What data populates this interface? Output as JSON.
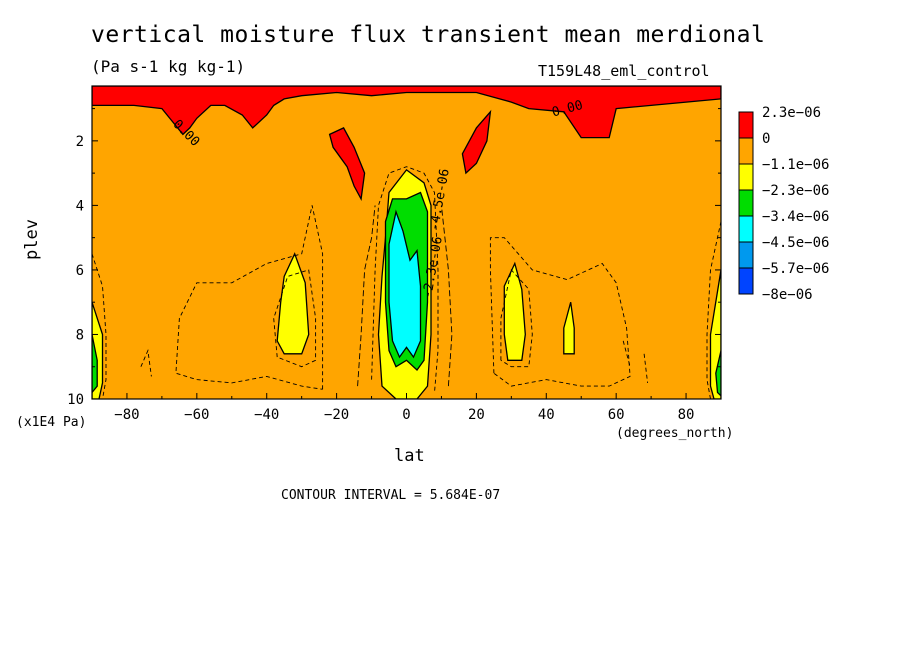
{
  "chart_data": {
    "type": "heatmap",
    "title": "vertical moisture flux transient mean merdional",
    "subtitle": "(Pa s-1 kg kg-1)",
    "run_label": "T159L48_eml_control",
    "xlabel": "lat",
    "ylabel": "plev",
    "x_unit": "(degrees_north)",
    "y_unit": "(x1E4 Pa)",
    "xlim": [
      -90,
      90
    ],
    "ylim": [
      10,
      0.3
    ],
    "x_ticks": [
      -80,
      -60,
      -40,
      -20,
      0,
      20,
      40,
      60,
      80
    ],
    "y_ticks": [
      2,
      4,
      6,
      8,
      10
    ],
    "contour_interval_text": "CONTOUR INTERVAL = 5.684E-07",
    "contour_labels": [
      "0.00",
      "-0.00",
      "-2.3e-06",
      "-4.5e-06"
    ],
    "colorbar": {
      "levels": [
        "2.3e-06",
        "0",
        "-1.1e-06",
        "-2.3e-06",
        "-3.4e-06",
        "-4.5e-06",
        "-5.7e-06",
        "-8e-06"
      ],
      "colors": [
        "#ff0000",
        "#ffa500",
        "#ffff00",
        "#00dd00",
        "#00ffff",
        "#0099ee",
        "#0044ff"
      ]
    },
    "background_color": "#ffa500",
    "regions": [
      {
        "level": "positive",
        "color": "#ff0000",
        "points": [
          [
            -90,
            0.3
          ],
          [
            90,
            0.3
          ],
          [
            90,
            0.7
          ],
          [
            80,
            0.8
          ],
          [
            70,
            0.9
          ],
          [
            60,
            1.0
          ],
          [
            58,
            1.9
          ],
          [
            50,
            1.9
          ],
          [
            45,
            1.1
          ],
          [
            35,
            1.0
          ],
          [
            30,
            0.8
          ],
          [
            20,
            0.5
          ],
          [
            10,
            0.5
          ],
          [
            0,
            0.5
          ],
          [
            -10,
            0.6
          ],
          [
            -20,
            0.5
          ],
          [
            -30,
            0.6
          ],
          [
            -35,
            0.7
          ],
          [
            -38,
            0.9
          ],
          [
            -40,
            1.2
          ],
          [
            -44,
            1.6
          ],
          [
            -47,
            1.2
          ],
          [
            -52,
            0.9
          ],
          [
            -56,
            0.9
          ],
          [
            -60,
            1.3
          ],
          [
            -62,
            1.6
          ],
          [
            -64,
            1.8
          ],
          [
            -67,
            1.4
          ],
          [
            -70,
            1.0
          ],
          [
            -78,
            0.9
          ],
          [
            -84,
            0.9
          ],
          [
            -90,
            0.9
          ]
        ]
      },
      {
        "level": "positive",
        "color": "#ff0000",
        "points": [
          [
            -22,
            1.8
          ],
          [
            -18,
            1.6
          ],
          [
            -15,
            2.2
          ],
          [
            -12,
            3.0
          ],
          [
            -13,
            3.8
          ],
          [
            -15,
            3.4
          ],
          [
            -17,
            2.8
          ],
          [
            -21,
            2.2
          ]
        ]
      },
      {
        "level": "positive",
        "color": "#ff0000",
        "points": [
          [
            16,
            2.4
          ],
          [
            20,
            1.6
          ],
          [
            24,
            1.1
          ],
          [
            23,
            2.0
          ],
          [
            20,
            2.7
          ],
          [
            17,
            3.0
          ]
        ]
      },
      {
        "level": "-1.1e-06",
        "color": "#ffff00",
        "points": [
          [
            -6,
            5.0
          ],
          [
            -5,
            3.6
          ],
          [
            0,
            2.9
          ],
          [
            5,
            3.3
          ],
          [
            7,
            4.0
          ],
          [
            7,
            6.0
          ],
          [
            7,
            8.0
          ],
          [
            6,
            9.6
          ],
          [
            3,
            10
          ],
          [
            -3,
            10
          ],
          [
            -7,
            9.6
          ],
          [
            -8,
            8.0
          ],
          [
            -7,
            6.2
          ]
        ]
      },
      {
        "level": "-3.4e-06",
        "color": "#00dd00",
        "points": [
          [
            -6,
            4.5
          ],
          [
            -4,
            3.8
          ],
          [
            0,
            3.8
          ],
          [
            4,
            3.6
          ],
          [
            6,
            4.2
          ],
          [
            6,
            7.0
          ],
          [
            5,
            8.8
          ],
          [
            3,
            9.1
          ],
          [
            0,
            8.8
          ],
          [
            -3,
            9.0
          ],
          [
            -5,
            8.5
          ],
          [
            -6,
            7.0
          ]
        ]
      },
      {
        "level": "-4.5e-06",
        "color": "#00ffff",
        "points": [
          [
            -5,
            5.2
          ],
          [
            -3,
            4.2
          ],
          [
            -1,
            4.8
          ],
          [
            1,
            5.7
          ],
          [
            3,
            5.4
          ],
          [
            4,
            6.5
          ],
          [
            4,
            8.2
          ],
          [
            2,
            8.7
          ],
          [
            0,
            8.4
          ],
          [
            -2,
            8.7
          ],
          [
            -4,
            8.2
          ],
          [
            -5,
            7.0
          ]
        ]
      },
      {
        "level": "-1.1e-06",
        "color": "#ffff00",
        "points": [
          [
            -35,
            6.2
          ],
          [
            -32,
            5.5
          ],
          [
            -29,
            6.4
          ],
          [
            -28,
            8.0
          ],
          [
            -30,
            8.6
          ],
          [
            -35,
            8.6
          ],
          [
            -37,
            8.2
          ],
          [
            -36,
            7.0
          ]
        ]
      },
      {
        "level": "-1.1e-06",
        "color": "#ffff00",
        "points": [
          [
            28,
            6.5
          ],
          [
            31,
            5.8
          ],
          [
            33,
            6.6
          ],
          [
            34,
            8.0
          ],
          [
            33,
            8.8
          ],
          [
            29,
            8.8
          ],
          [
            28,
            8.0
          ]
        ]
      },
      {
        "level": "-1.1e-06",
        "color": "#ffff00",
        "points": [
          [
            45,
            7.8
          ],
          [
            47,
            7.0
          ],
          [
            48,
            7.8
          ],
          [
            48,
            8.6
          ],
          [
            45,
            8.6
          ]
        ]
      },
      {
        "level": "-1.1e-06",
        "color": "#ffff00",
        "points": [
          [
            -90,
            7.0
          ],
          [
            -87,
            8.0
          ],
          [
            -87,
            9.5
          ],
          [
            -88,
            10
          ],
          [
            -90,
            10
          ]
        ]
      },
      {
        "level": "-1.1e-06",
        "color": "#ffff00",
        "points": [
          [
            90,
            6.0
          ],
          [
            87,
            8.0
          ],
          [
            87,
            9.6
          ],
          [
            88,
            10
          ],
          [
            90,
            10
          ]
        ]
      },
      {
        "level": "-2.3e-06",
        "color": "#00dd00",
        "points": [
          [
            -90,
            8.0
          ],
          [
            -88.5,
            8.8
          ],
          [
            -88.5,
            9.6
          ],
          [
            -90,
            9.8
          ]
        ]
      },
      {
        "level": "-2.3e-06",
        "color": "#00dd00",
        "points": [
          [
            90,
            8.5
          ],
          [
            88.5,
            9.2
          ],
          [
            89,
            9.8
          ],
          [
            90,
            9.9
          ]
        ]
      }
    ],
    "dashed_contours": [
      [
        [
          -24,
          9.7
        ],
        [
          -24,
          5.5
        ],
        [
          -27,
          4.0
        ],
        [
          -30,
          5.5
        ],
        [
          -40,
          5.8
        ],
        [
          -50,
          6.4
        ],
        [
          -60,
          6.4
        ],
        [
          -65,
          7.5
        ],
        [
          -66,
          9.2
        ],
        [
          -60,
          9.4
        ],
        [
          -50,
          9.5
        ],
        [
          -40,
          9.3
        ],
        [
          -30,
          9.6
        ],
        [
          -24,
          9.7
        ]
      ],
      [
        [
          -37,
          8.7
        ],
        [
          -38,
          7.5
        ],
        [
          -34,
          6.2
        ],
        [
          -28,
          6.0
        ],
        [
          -26,
          7.5
        ],
        [
          -26,
          8.8
        ],
        [
          -30,
          9.0
        ],
        [
          -37,
          8.7
        ]
      ],
      [
        [
          -10,
          9.4
        ],
        [
          -9,
          6.0
        ],
        [
          -8,
          4.0
        ],
        [
          -5,
          3.0
        ],
        [
          0,
          2.8
        ],
        [
          5,
          3.0
        ],
        [
          8,
          3.6
        ],
        [
          9,
          6.0
        ],
        [
          9,
          8.5
        ],
        [
          8,
          9.8
        ]
      ],
      [
        [
          25,
          9.2
        ],
        [
          24,
          6.0
        ],
        [
          24,
          5.0
        ],
        [
          28,
          5.0
        ],
        [
          36,
          6.0
        ],
        [
          46,
          6.3
        ],
        [
          56,
          5.8
        ],
        [
          60,
          6.4
        ],
        [
          63,
          7.8
        ],
        [
          64,
          9.3
        ],
        [
          58,
          9.6
        ],
        [
          50,
          9.6
        ],
        [
          40,
          9.4
        ],
        [
          30,
          9.6
        ],
        [
          25,
          9.2
        ]
      ],
      [
        [
          27,
          8.8
        ],
        [
          27,
          7.5
        ],
        [
          30,
          6.0
        ],
        [
          35,
          6.6
        ],
        [
          36,
          8.0
        ],
        [
          35,
          9.0
        ],
        [
          30,
          9.0
        ],
        [
          27,
          8.8
        ]
      ],
      [
        [
          -90,
          5.5
        ],
        [
          -87,
          6.5
        ],
        [
          -86,
          8.0
        ],
        [
          -86,
          9.4
        ],
        [
          -87,
          10
        ]
      ],
      [
        [
          90,
          4.5
        ],
        [
          87,
          6.0
        ],
        [
          86,
          8.0
        ],
        [
          86,
          9.4
        ],
        [
          87,
          10
        ]
      ],
      [
        [
          -76,
          9.0
        ],
        [
          -74,
          8.5
        ],
        [
          -73,
          9.3
        ]
      ],
      [
        [
          68,
          8.6
        ],
        [
          69,
          9.5
        ]
      ],
      [
        [
          62,
          8.2
        ],
        [
          64,
          9.0
        ]
      ]
    ],
    "solid_contours": [
      [
        [
          -14,
          9.6
        ],
        [
          -13,
          8.0
        ],
        [
          -12,
          6.0
        ],
        [
          -10,
          5.0
        ],
        [
          -9,
          4.0
        ]
      ],
      [
        [
          12,
          9.6
        ],
        [
          13,
          8.0
        ],
        [
          12,
          6.0
        ],
        [
          11,
          5.0
        ],
        [
          10,
          4.0
        ]
      ]
    ]
  }
}
